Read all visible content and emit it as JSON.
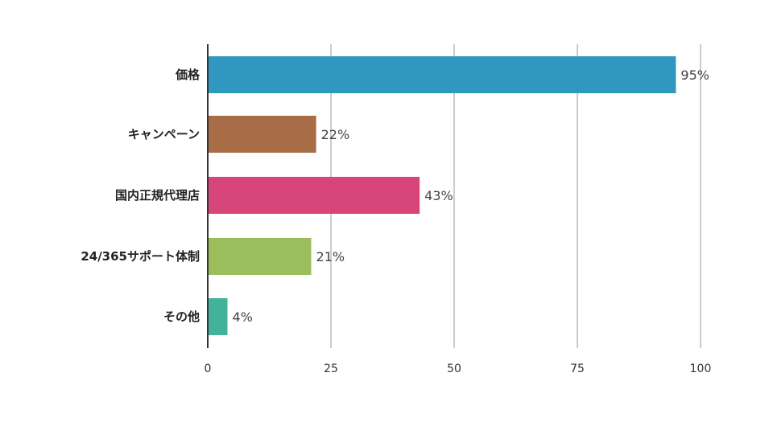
{
  "chart_data": {
    "type": "bar",
    "orientation": "horizontal",
    "title": "",
    "xlabel": "",
    "ylabel": "",
    "categories": [
      "価格",
      "キャンペーン",
      "国内正規代理店",
      "24/365サポート体制",
      "その他"
    ],
    "values": [
      95,
      22,
      43,
      21,
      4
    ],
    "value_labels": [
      "95%",
      "22%",
      "43%",
      "21%",
      "4%"
    ],
    "colors": [
      "#3097c0",
      "#a86d47",
      "#d8457a",
      "#9bbd5c",
      "#41b39b"
    ],
    "xlim": [
      0,
      100
    ],
    "xticks": [
      0,
      25,
      50,
      75,
      100
    ],
    "xtick_labels": [
      "0",
      "25",
      "50",
      "75",
      "100"
    ],
    "grid": "vertical",
    "gridline_color": "#cccccc",
    "legend": "none"
  }
}
